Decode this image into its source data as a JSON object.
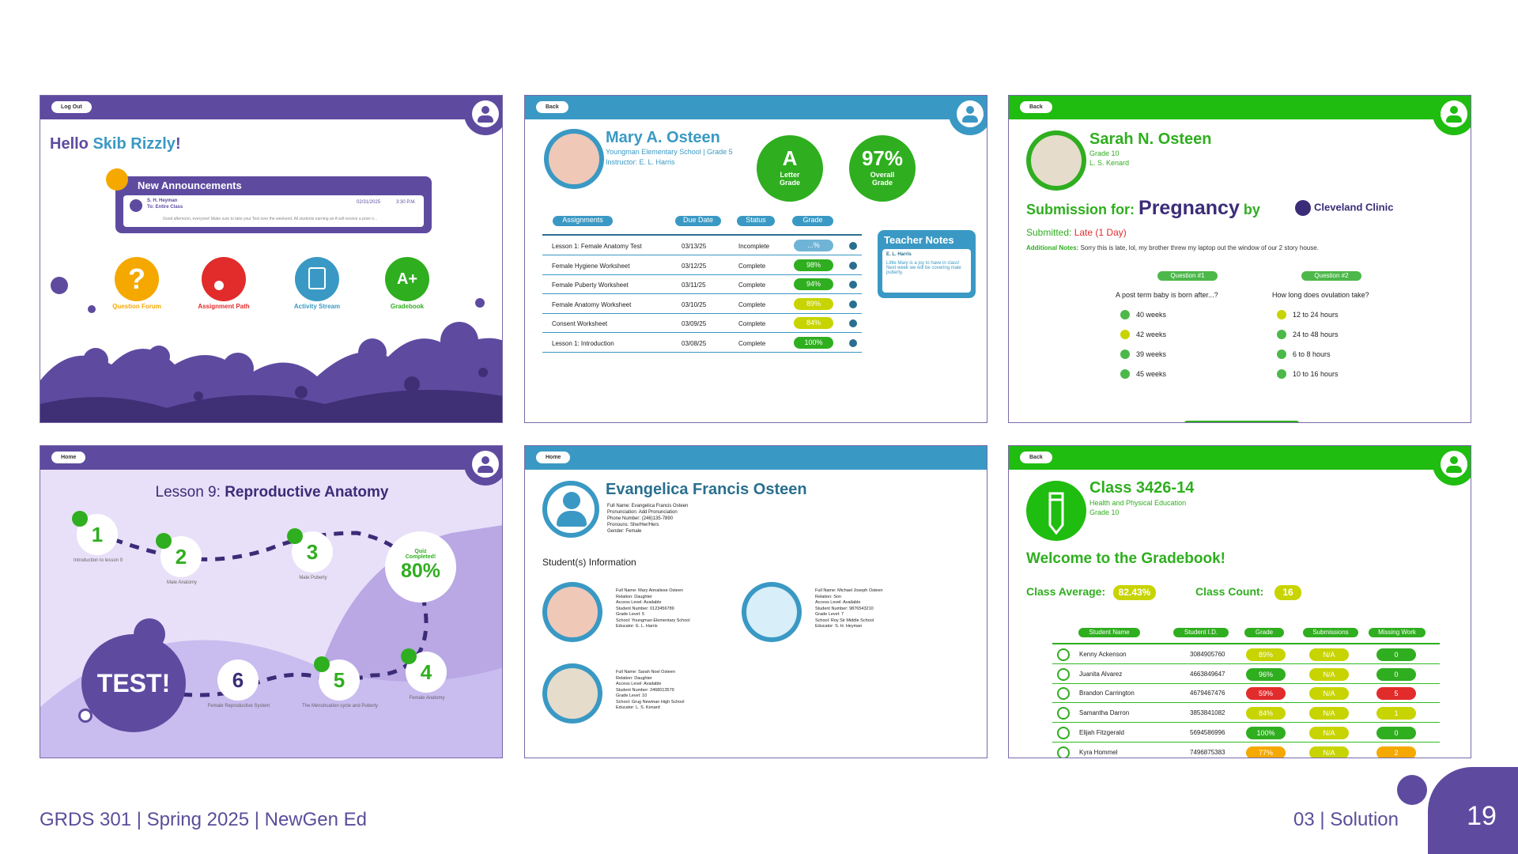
{
  "p1": {
    "btn": "Log Out",
    "hello": "Hello ",
    "name": "Skib Rizzly",
    "excl": "!",
    "ann_title": "New Announcements",
    "ann_from": "S. H. Heyman",
    "ann_to": "To: Entire Class",
    "ann_date": "02/31/2025",
    "ann_time": "3:30 P.M.",
    "ann_text": "Good afternoon, everyone! Make sure to take your Test over the weekend. All students earning an A will receive a prize n...",
    "tiles": [
      {
        "label": "Question Forum",
        "color": "#f5a800"
      },
      {
        "label": "Assignment Path",
        "color": "#e22b2b"
      },
      {
        "label": "Activity Stream",
        "color": "#3a99c4"
      },
      {
        "label": "Gradebook",
        "color": "#2fae1f"
      }
    ]
  },
  "p2": {
    "btn": "Back",
    "name": "Mary A. Osteen",
    "school": "Youngman Elementary School | Grade 5",
    "instructor": "Instructor: E. L. Harris",
    "letter": "A",
    "letter_label": "Letter Grade",
    "overall": "97%",
    "overall_label": "Overall Grade",
    "cols": [
      "Assignments",
      "Due Date",
      "Status",
      "Grade"
    ],
    "rows": [
      {
        "name": "Lesson 1: Female Anatomy Test",
        "date": "03/13/25",
        "status": "Incomplete",
        "grade": "...%",
        "color": "#6fb4d6"
      },
      {
        "name": "Female Hygiene Worksheet",
        "date": "03/12/25",
        "status": "Complete",
        "grade": "98%",
        "color": "#2fae1f"
      },
      {
        "name": "Female Puberty Worksheet",
        "date": "03/11/25",
        "status": "Complete",
        "grade": "94%",
        "color": "#2fae1f"
      },
      {
        "name": "Female Anatomy Worksheet",
        "date": "03/10/25",
        "status": "Complete",
        "grade": "89%",
        "color": "#c8d400"
      },
      {
        "name": "Consent Worksheet",
        "date": "03/09/25",
        "status": "Complete",
        "grade": "84%",
        "color": "#c8d400"
      },
      {
        "name": "Lesson 1: Introduction",
        "date": "03/08/25",
        "status": "Complete",
        "grade": "100%",
        "color": "#2fae1f"
      }
    ],
    "notes_title": "Teacher Notes",
    "notes_by": "E. L. Harris",
    "notes_text": "Little Mary is a joy to have in class! Next week we will be covering male puberty."
  },
  "p3": {
    "btn": "Back",
    "name": "Sarah N. Osteen",
    "grade": "Grade 10",
    "teacher": "L. S. Kenard",
    "sub_for": "Submission for:",
    "topic": "Pregnancy",
    "by": "by",
    "clinic": "Cleveland Clinic",
    "submitted_label": "Submitted: ",
    "submitted_val": "Late (1 Day)",
    "notes_label": "Additional Notes: ",
    "notes_val": "Sorry this is late, lol, my brother threw my laptop out the window of our 2 story house.",
    "q1": "Question #1",
    "q1_text": "A post term baby is born after...?",
    "q1_opts": [
      {
        "t": "40 weeks",
        "c": "#4cb84a"
      },
      {
        "t": "42 weeks",
        "c": "#c8d400"
      },
      {
        "t": "39 weeks",
        "c": "#4cb84a"
      },
      {
        "t": "45 weeks",
        "c": "#4cb84a"
      }
    ],
    "q2": "Question #2",
    "q2_text": "How long does ovulation take?",
    "q2_opts": [
      {
        "t": "12 to 24 hours",
        "c": "#c8d400"
      },
      {
        "t": "24 to 48 hours",
        "c": "#4cb84a"
      },
      {
        "t": "6 to 8 hours",
        "c": "#4cb84a"
      },
      {
        "t": "10 to 16 hours",
        "c": "#4cb84a"
      }
    ]
  },
  "p4": {
    "btn": "Home",
    "lesson": "Lesson 9:",
    "title": " Reproductive Anatomy",
    "steps": [
      {
        "n": "1",
        "label": "Introduction to lesson 9"
      },
      {
        "n": "2",
        "label": "Male Anatomy"
      },
      {
        "n": "3",
        "label": "Male Puberty"
      },
      {
        "n": "4",
        "label": "Female Anatomy"
      },
      {
        "n": "5",
        "label": "The Menstruation cycle and Puberty"
      },
      {
        "n": "6",
        "label": "Female Reproductive System"
      }
    ],
    "quiz_label": "Quiz Completed!",
    "quiz_pct": "80%",
    "test": "TEST!"
  },
  "p5": {
    "btn": "Home",
    "name": "Evangelica Francis Osteen",
    "info": [
      "Full Name: Evangelica Francis Osteen",
      "Pronunciation: Add Pronunciation",
      "Phone Number: (246)135-7890",
      "Pronouns: She/Her/Hers",
      "Gender: Female"
    ],
    "students_title": "Student(s) Information",
    "students": [
      {
        "lines": [
          "Full Name: Mary Annaliese Osteen",
          "Relation: Daughter",
          "Access Level: Available",
          "Student Number: 0123456789",
          "Grade Level: 5",
          "School: Youngman Elementary School",
          "Educator: E. L. Harris"
        ]
      },
      {
        "lines": [
          "Full Name: Michael Joseph Osteen",
          "Relation: Son",
          "Access Level: Available",
          "Student Number: 9876543210",
          "Grade Level: 7",
          "School: Roy Sir Middle School",
          "Educator: S. H. Heyman"
        ]
      },
      {
        "lines": [
          "Full Name: Sarah Noel Osteen",
          "Relation: Daughter",
          "Access Level: Available",
          "Student Number: 2468013579",
          "Grade Level: 10",
          "School: Grug Newman High School",
          "Educator: L. S. Kenard"
        ]
      }
    ]
  },
  "p6": {
    "btn": "Back",
    "class": "Class 3426-14",
    "subject": "Health and Physical Education",
    "grade": "Grade 10",
    "welcome": "Welcome to the Gradebook!",
    "avg_label": "Class Average:",
    "avg_val": "82.43%",
    "count_label": "Class Count:",
    "count_val": "16",
    "cols": [
      "Student Name",
      "Student I.D.",
      "Grade",
      "Submissions",
      "Missing Work"
    ],
    "rows": [
      {
        "name": "Kenny Ackenson",
        "id": "3084905760",
        "grade": "89%",
        "gc": "#c8d400",
        "sub": "N/A",
        "miss": "0",
        "mc": "#2fae1f"
      },
      {
        "name": "Juanita Alvarez",
        "id": "4663849647",
        "grade": "96%",
        "gc": "#2fae1f",
        "sub": "N/A",
        "miss": "0",
        "mc": "#2fae1f"
      },
      {
        "name": "Brandon Carrington",
        "id": "4679467476",
        "grade": "59%",
        "gc": "#e22b2b",
        "sub": "N/A",
        "miss": "5",
        "mc": "#e22b2b"
      },
      {
        "name": "Samantha Darron",
        "id": "3853841082",
        "grade": "84%",
        "gc": "#c8d400",
        "sub": "N/A",
        "miss": "1",
        "mc": "#c8d400"
      },
      {
        "name": "Elijah Fitzgerald",
        "id": "5694586996",
        "grade": "100%",
        "gc": "#2fae1f",
        "sub": "N/A",
        "miss": "0",
        "mc": "#2fae1f"
      },
      {
        "name": "Kyra Hommel",
        "id": "7496875383",
        "grade": "77%",
        "gc": "#f5a800",
        "sub": "N/A",
        "miss": "2",
        "mc": "#f5a800"
      }
    ]
  },
  "footer": {
    "left": "GRDS 301 | Spring 2025 | NewGen Ed",
    "right": "03 | Solution",
    "page": "19"
  }
}
